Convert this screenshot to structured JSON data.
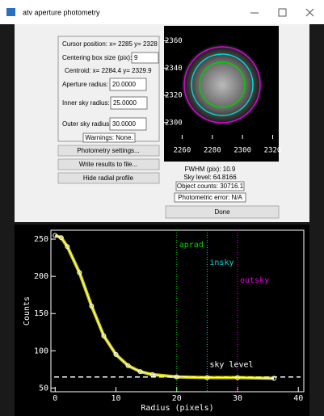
{
  "window": {
    "title": "atv aperture photometry"
  },
  "info": {
    "cursor": "Cursor position: x= 2285 y= 2328",
    "centering_label": "Centering box size (pix):",
    "centering_value": "9",
    "centroid": "Centroid:   x= 2284.4 y= 2329.9",
    "aperture_label": "Aperture radius:",
    "aperture_value": "20.0000",
    "inner_label": "Inner sky radius:",
    "inner_value": "25.0000",
    "outer_label": "Outer sky radius:",
    "outer_value": "30.0000"
  },
  "buttons": {
    "warnings": "Warnings: None.",
    "settings": "Photometry settings...",
    "write": "Write results to file...",
    "hide": "Hide radial profile",
    "done": "Done"
  },
  "results": {
    "fwhm": "FWHM (pix):   10.9",
    "sky": "Sky level:    64.8166",
    "counts": "Object counts: 30716.1",
    "error": "Photometric error: N/A"
  },
  "thumbnail": {
    "xlim": [
      2248,
      2324
    ],
    "ylim": [
      2288,
      2371
    ],
    "xticks": [
      2260,
      2280,
      2300,
      2320
    ],
    "yticks": [
      2300,
      2320,
      2340,
      2360
    ]
  },
  "profile": {
    "type": "scatter",
    "xlabel": "Radius (pixels)",
    "ylabel": "Counts",
    "xlim": [
      -0.7,
      40.9
    ],
    "ylim": [
      45,
      262
    ],
    "xticks": [
      0,
      10,
      20,
      30,
      40
    ],
    "yticks": [
      50,
      100,
      150,
      200,
      250
    ],
    "color": "#ffff00",
    "radius": [
      0,
      1,
      2,
      4,
      6,
      8,
      10,
      12,
      14,
      16,
      20,
      25,
      30,
      36
    ],
    "counts": [
      255,
      252,
      240,
      205,
      160,
      120,
      95,
      80,
      72,
      68,
      65,
      64,
      64,
      63
    ],
    "markers": [
      {
        "label": "aprad",
        "x": 20,
        "color": "#00d000"
      },
      {
        "label": "insky",
        "x": 25,
        "color": "#00d8d8"
      },
      {
        "label": "outsky",
        "x": 30,
        "color": "#e000e0"
      }
    ],
    "sky": {
      "label": "sky level",
      "value": 64.8166
    }
  }
}
